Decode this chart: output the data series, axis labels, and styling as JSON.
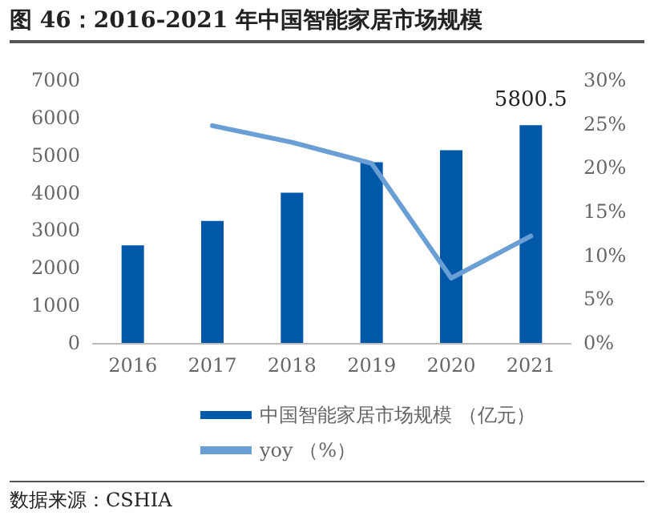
{
  "chart_data": {
    "type": "bar",
    "title": "图 46：2016-2021 年中国智能家居市场规模",
    "categories": [
      "2016",
      "2017",
      "2018",
      "2019",
      "2020",
      "2021"
    ],
    "series": [
      {
        "name": "中国智能家居市场规模 （亿元）",
        "color": "#0058a8",
        "values": [
          2600,
          3250,
          4000,
          4810,
          5130,
          5800.5
        ],
        "value_labels": [
          null,
          null,
          null,
          null,
          null,
          "5800.5"
        ]
      },
      {
        "name": "yoy （%）",
        "type": "line",
        "axis": "y2",
        "color": "#6a9fd6",
        "values": [
          null,
          24.8,
          22.9,
          20.5,
          7.4,
          12.2
        ]
      }
    ],
    "ylim": [
      0,
      7000
    ],
    "yticks": [
      0,
      1000,
      2000,
      3000,
      4000,
      5000,
      6000,
      7000
    ],
    "y2lim": [
      0,
      30
    ],
    "y2ticks": [
      {
        "value": 0,
        "label": "0%"
      },
      {
        "value": 5,
        "label": "5%"
      },
      {
        "value": 10,
        "label": "10%"
      },
      {
        "value": 15,
        "label": "15%"
      },
      {
        "value": 20,
        "label": "20%"
      },
      {
        "value": 25,
        "label": "25%"
      },
      {
        "value": 30,
        "label": "30%"
      }
    ],
    "grid": false,
    "legend": "bottom",
    "marker": "none",
    "line_style": "solid",
    "annotations": [
      "数据来源：CSHIA"
    ]
  }
}
